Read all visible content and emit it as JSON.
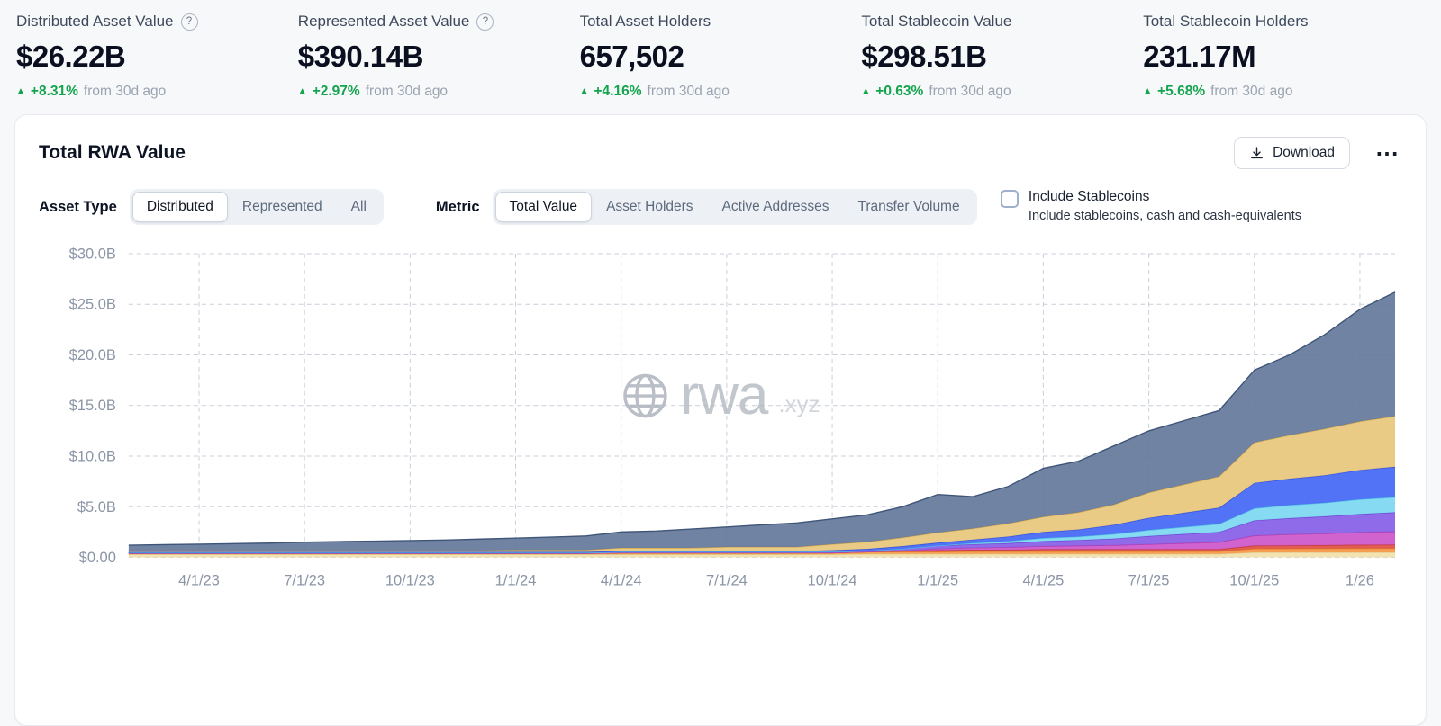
{
  "colors": {
    "positive_green": "#14a44d",
    "axis_label_gray": "#8b95a6",
    "page_background": "#f7f8fa",
    "card_background": "#ffffff"
  },
  "icons": {
    "help": "?",
    "delta_up": "▲",
    "more": "⋯",
    "download": "tray-arrow-down",
    "watermark": "globe"
  },
  "stats": [
    {
      "label": "Distributed Asset Value",
      "has_help": true,
      "value": "$26.22B",
      "delta": "+8.31%",
      "delta_suffix": "from 30d ago"
    },
    {
      "label": "Represented Asset Value",
      "has_help": true,
      "value": "$390.14B",
      "delta": "+2.97%",
      "delta_suffix": "from 30d ago"
    },
    {
      "label": "Total Asset Holders",
      "has_help": false,
      "value": "657,502",
      "delta": "+4.16%",
      "delta_suffix": "from 30d ago"
    },
    {
      "label": "Total Stablecoin Value",
      "has_help": false,
      "value": "$298.51B",
      "delta": "+0.63%",
      "delta_suffix": "from 30d ago"
    },
    {
      "label": "Total Stablecoin Holders",
      "has_help": false,
      "value": "231.17M",
      "delta": "+5.68%",
      "delta_suffix": "from 30d ago"
    }
  ],
  "card": {
    "title": "Total RWA Value",
    "download_label": "Download",
    "watermark_text": "rwa",
    "watermark_suffix": ".xyz",
    "filters": {
      "asset_type_label": "Asset Type",
      "asset_type_options": [
        "Distributed",
        "Represented",
        "All"
      ],
      "asset_type_selected": "Distributed",
      "metric_label": "Metric",
      "metric_options": [
        "Total Value",
        "Asset Holders",
        "Active Addresses",
        "Transfer Volume"
      ],
      "metric_selected": "Total Value",
      "stablecoins_checkbox_label": "Include Stablecoins",
      "stablecoins_checkbox_sublabel": "Include stablecoins, cash and cash-equivalents",
      "stablecoins_checked": false
    }
  },
  "chart_data": {
    "type": "area",
    "stacked": true,
    "title": "Total RWA Value",
    "unit": "USD billions",
    "ylim": [
      0,
      30
    ],
    "grid": "dashed",
    "legend": "none",
    "x_sampling": "monthly estimates from 2023-02 through 2026-02 (37 points)",
    "x_tick_labels": [
      "4/1/23",
      "7/1/23",
      "10/1/23",
      "1/1/24",
      "4/1/24",
      "7/1/24",
      "10/1/24",
      "1/1/25",
      "4/1/25",
      "7/1/25",
      "10/1/25",
      "1/26"
    ],
    "x_tick_indices": [
      2,
      5,
      8,
      11,
      14,
      17,
      20,
      23,
      26,
      29,
      32,
      35
    ],
    "y_ticks": [
      "$0.00",
      "$5.0B",
      "$10.0B",
      "$15.0B",
      "$20.0B",
      "$25.0B",
      "$30.0B"
    ],
    "y_tick_values": [
      0,
      5,
      10,
      15,
      20,
      25,
      30
    ],
    "series": [
      {
        "name": "band-1-cream",
        "color": "#f2e2ae",
        "stroke": "#e0c987",
        "values": [
          0.3,
          0.3,
          0.3,
          0.3,
          0.3,
          0.3,
          0.3,
          0.3,
          0.3,
          0.3,
          0.3,
          0.3,
          0.3,
          0.3,
          0.3,
          0.3,
          0.3,
          0.3,
          0.3,
          0.3,
          0.3,
          0.35,
          0.35,
          0.35,
          0.35,
          0.35,
          0.35,
          0.35,
          0.35,
          0.35,
          0.35,
          0.35,
          0.5,
          0.5,
          0.5,
          0.5,
          0.5
        ]
      },
      {
        "name": "band-2-orange",
        "color": "#f59a4b",
        "stroke": "#df7e2a",
        "values": [
          0.1,
          0.1,
          0.1,
          0.1,
          0.1,
          0.1,
          0.1,
          0.1,
          0.1,
          0.1,
          0.1,
          0.1,
          0.1,
          0.1,
          0.15,
          0.15,
          0.15,
          0.15,
          0.15,
          0.15,
          0.15,
          0.2,
          0.2,
          0.2,
          0.25,
          0.25,
          0.25,
          0.25,
          0.25,
          0.25,
          0.25,
          0.25,
          0.35,
          0.36,
          0.38,
          0.39,
          0.4
        ]
      },
      {
        "name": "band-3-red",
        "color": "#e2544a",
        "stroke": "#c43c33",
        "values": [
          0,
          0,
          0,
          0,
          0,
          0,
          0,
          0,
          0,
          0,
          0,
          0,
          0,
          0,
          0,
          0,
          0,
          0,
          0,
          0,
          0,
          0,
          0.1,
          0.15,
          0.15,
          0.15,
          0.2,
          0.2,
          0.2,
          0.2,
          0.2,
          0.2,
          0.3,
          0.31,
          0.32,
          0.34,
          0.35
        ]
      },
      {
        "name": "band-4-magenta",
        "color": "#cf5bcb",
        "stroke": "#b23fae",
        "values": [
          0,
          0,
          0,
          0,
          0,
          0,
          0,
          0,
          0,
          0,
          0,
          0,
          0,
          0,
          0,
          0,
          0,
          0,
          0,
          0,
          0,
          0,
          0,
          0.15,
          0.2,
          0.25,
          0.3,
          0.35,
          0.4,
          0.5,
          0.6,
          0.7,
          1.0,
          1.1,
          1.15,
          1.25,
          1.3
        ]
      },
      {
        "name": "band-5-purple",
        "color": "#8a63e8",
        "stroke": "#6f46d4",
        "values": [
          0.05,
          0.05,
          0.05,
          0.05,
          0.05,
          0.05,
          0.05,
          0.05,
          0.05,
          0.05,
          0.05,
          0.05,
          0.05,
          0.05,
          0.08,
          0.08,
          0.08,
          0.08,
          0.08,
          0.08,
          0.1,
          0.1,
          0.2,
          0.3,
          0.35,
          0.4,
          0.5,
          0.55,
          0.65,
          0.8,
          0.9,
          1.0,
          1.5,
          1.6,
          1.7,
          1.8,
          1.9
        ]
      },
      {
        "name": "band-6-cyan",
        "color": "#7fd9f2",
        "stroke": "#54c0e0",
        "values": [
          0,
          0,
          0,
          0,
          0,
          0,
          0,
          0,
          0,
          0,
          0,
          0,
          0,
          0,
          0,
          0,
          0,
          0,
          0,
          0,
          0,
          0,
          0,
          0,
          0.1,
          0.2,
          0.3,
          0.35,
          0.45,
          0.6,
          0.7,
          0.8,
          1.2,
          1.3,
          1.35,
          1.45,
          1.5
        ]
      },
      {
        "name": "band-7-blue",
        "color": "#4a6cf7",
        "stroke": "#3352dd",
        "values": [
          0.08,
          0.08,
          0.08,
          0.08,
          0.08,
          0.08,
          0.08,
          0.08,
          0.08,
          0.08,
          0.08,
          0.08,
          0.08,
          0.08,
          0.1,
          0.1,
          0.1,
          0.1,
          0.1,
          0.1,
          0.15,
          0.18,
          0.25,
          0.3,
          0.35,
          0.45,
          0.6,
          0.7,
          0.9,
          1.2,
          1.4,
          1.6,
          2.5,
          2.6,
          2.7,
          2.9,
          3.0
        ]
      },
      {
        "name": "band-8-gold",
        "color": "#e9c87f",
        "stroke": "#d4ab52",
        "values": [
          0.15,
          0.15,
          0.15,
          0.15,
          0.15,
          0.15,
          0.15,
          0.15,
          0.15,
          0.15,
          0.15,
          0.2,
          0.2,
          0.2,
          0.3,
          0.3,
          0.3,
          0.4,
          0.4,
          0.4,
          0.6,
          0.7,
          0.85,
          1.0,
          1.1,
          1.3,
          1.5,
          1.7,
          2.0,
          2.5,
          2.8,
          3.1,
          4.0,
          4.3,
          4.6,
          4.8,
          5.0
        ]
      },
      {
        "name": "band-9-slate",
        "color": "#64789b",
        "stroke": "#3f5578",
        "opacity": 0.92,
        "values": [
          0.52,
          0.57,
          0.62,
          0.67,
          0.72,
          0.82,
          0.87,
          0.92,
          0.97,
          1.02,
          1.12,
          1.17,
          1.27,
          1.37,
          1.57,
          1.67,
          1.87,
          1.97,
          2.17,
          2.37,
          2.5,
          2.67,
          3.05,
          3.75,
          3.15,
          3.65,
          4.8,
          5.05,
          5.8,
          6.1,
          6.3,
          6.5,
          7.15,
          7.93,
          9.3,
          11.07,
          12.25
        ]
      }
    ]
  }
}
